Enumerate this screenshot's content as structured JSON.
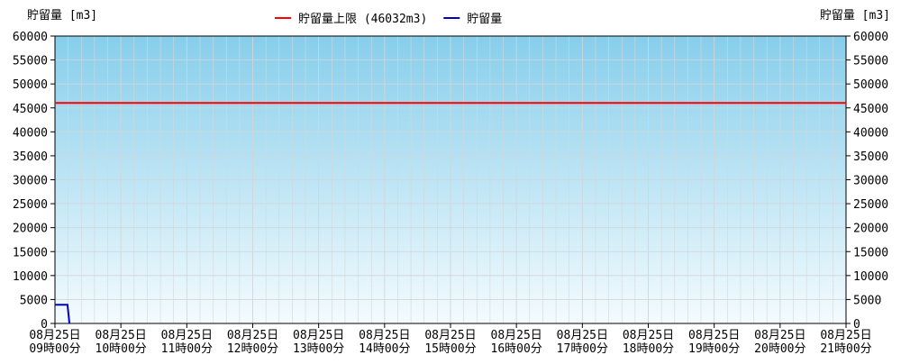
{
  "chart_data": {
    "type": "line",
    "y_label": "貯留量 [m3]",
    "y2_label": "貯留量 [m3]",
    "xlim": [
      9,
      21
    ],
    "xticks": [
      {
        "value": 9,
        "label": "08月25日\n09時00分"
      },
      {
        "value": 10,
        "label": "08月25日\n10時00分"
      },
      {
        "value": 11,
        "label": "08月25日\n11時00分"
      },
      {
        "value": 12,
        "label": "08月25日\n12時00分"
      },
      {
        "value": 13,
        "label": "08月25日\n13時00分"
      },
      {
        "value": 14,
        "label": "08月25日\n14時00分"
      },
      {
        "value": 15,
        "label": "08月25日\n15時00分"
      },
      {
        "value": 16,
        "label": "08月25日\n16時00分"
      },
      {
        "value": 17,
        "label": "08月25日\n17時00分"
      },
      {
        "value": 18,
        "label": "08月25日\n18時00分"
      },
      {
        "value": 19,
        "label": "08月25日\n19時00分"
      },
      {
        "value": 20,
        "label": "08月25日\n20時00分"
      },
      {
        "value": 21,
        "label": "08月25日\n21時00分"
      }
    ],
    "ylim": [
      0,
      60000
    ],
    "yticks": [
      0,
      5000,
      10000,
      15000,
      20000,
      25000,
      30000,
      35000,
      40000,
      45000,
      50000,
      55000,
      60000
    ],
    "y2lim": [
      0,
      60000
    ],
    "y2ticks": [
      0,
      5000,
      10000,
      15000,
      20000,
      25000,
      30000,
      35000,
      40000,
      45000,
      50000,
      55000,
      60000
    ],
    "grid": true,
    "series": [
      {
        "name": "貯留量上限 (46032m3)",
        "color": "#ff0000",
        "x": [
          9,
          21
        ],
        "values": [
          46032,
          46032
        ]
      },
      {
        "name": "貯留量",
        "color": "#0000cc",
        "x": [
          9,
          9.19,
          9.22
        ],
        "values": [
          3900,
          3900,
          0
        ]
      }
    ]
  }
}
